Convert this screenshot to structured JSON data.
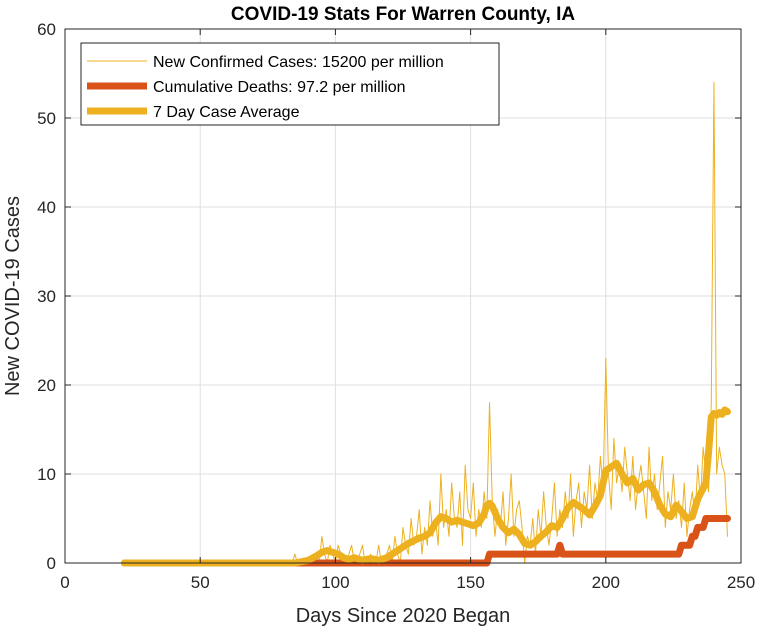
{
  "chart_data": {
    "type": "line",
    "title": "COVID-19 Stats For Warren County, IA",
    "xlabel": "Days Since 2020 Began",
    "ylabel": "New COVID-19 Cases",
    "xlim": [
      0,
      250
    ],
    "ylim": [
      0,
      60
    ],
    "xticks": [
      0,
      50,
      100,
      150,
      200,
      250
    ],
    "yticks": [
      0,
      10,
      20,
      30,
      40,
      50,
      60
    ],
    "xtick_labels": [
      "0",
      "50",
      "100",
      "150",
      "200",
      "250"
    ],
    "ytick_labels": [
      "0",
      "10",
      "20",
      "30",
      "40",
      "50",
      "60"
    ],
    "grid": true,
    "legend_position": "top-left",
    "series": [
      {
        "name": "New Confirmed Cases: 15200 per million",
        "color": "#edb120",
        "style": "thin",
        "x": [
          22,
          30,
          40,
          50,
          60,
          70,
          80,
          84,
          85,
          86,
          90,
          92,
          94,
          95,
          96,
          97,
          98,
          99,
          100,
          101,
          102,
          103,
          104,
          105,
          106,
          107,
          108,
          109,
          110,
          111,
          112,
          113,
          114,
          115,
          116,
          117,
          118,
          119,
          120,
          121,
          122,
          123,
          124,
          125,
          126,
          127,
          128,
          129,
          130,
          131,
          132,
          133,
          134,
          135,
          136,
          137,
          138,
          139,
          140,
          141,
          142,
          143,
          144,
          145,
          146,
          147,
          148,
          149,
          150,
          151,
          152,
          153,
          154,
          155,
          156,
          157,
          158,
          159,
          160,
          161,
          162,
          163,
          164,
          165,
          166,
          167,
          168,
          169,
          170,
          171,
          172,
          173,
          174,
          175,
          176,
          177,
          178,
          179,
          180,
          181,
          182,
          183,
          184,
          185,
          186,
          187,
          188,
          189,
          190,
          191,
          192,
          193,
          194,
          195,
          196,
          197,
          198,
          199,
          200,
          201,
          202,
          203,
          204,
          205,
          206,
          207,
          208,
          209,
          210,
          211,
          212,
          213,
          214,
          215,
          216,
          217,
          218,
          219,
          220,
          221,
          222,
          223,
          224,
          225,
          226,
          227,
          228,
          229,
          230,
          231,
          232,
          233,
          234,
          235,
          236,
          237,
          238,
          239,
          240,
          241,
          242,
          243,
          244,
          245
        ],
        "y": [
          0,
          0,
          0,
          0,
          0,
          0,
          0,
          0,
          1,
          0,
          0,
          1,
          0,
          3,
          1,
          0,
          2,
          1,
          0,
          2,
          1,
          0,
          0,
          1,
          2,
          0,
          0,
          1,
          2,
          0,
          0,
          1,
          0,
          0,
          2,
          0,
          0,
          1,
          2,
          0,
          3,
          1,
          0,
          4,
          2,
          1,
          5,
          2,
          3,
          6,
          1,
          4,
          2,
          7,
          3,
          5,
          2,
          10,
          4,
          6,
          3,
          9,
          5,
          4,
          8,
          2,
          11,
          6,
          5,
          9,
          3,
          6,
          4,
          8,
          5,
          18,
          7,
          3,
          6,
          4,
          8,
          2,
          5,
          10,
          3,
          6,
          7,
          4,
          0,
          3,
          2,
          5,
          1,
          6,
          3,
          8,
          4,
          2,
          5,
          9,
          3,
          6,
          4,
          8,
          5,
          10,
          3,
          7,
          9,
          4,
          8,
          6,
          11,
          5,
          9,
          7,
          12,
          8,
          23,
          10,
          6,
          14,
          9,
          11,
          8,
          13,
          10,
          7,
          12,
          6,
          9,
          11,
          8,
          5,
          13,
          7,
          10,
          6,
          9,
          12,
          4,
          8,
          6,
          10,
          5,
          7,
          4,
          9,
          3,
          6,
          8,
          5,
          11,
          7,
          13,
          10,
          8,
          18,
          54,
          10,
          13,
          11,
          10,
          3
        ]
      },
      {
        "name": "Cumulative Deaths: 97.2 per million",
        "color": "#d95319",
        "style": "thick-step",
        "x": [
          22,
          156,
          157,
          182,
          183,
          184,
          226,
          227,
          228,
          229,
          230,
          231,
          232,
          233,
          234,
          235,
          236,
          237,
          238,
          245
        ],
        "y": [
          0,
          0,
          1,
          1,
          2,
          1,
          1,
          1,
          2,
          2,
          2,
          2,
          3,
          3,
          4,
          4,
          4,
          5,
          5,
          5
        ]
      },
      {
        "name": "7 Day Case Average",
        "color": "#edb120",
        "style": "thick",
        "x": [
          22,
          60,
          85,
          90,
          93,
          95,
          97,
          99,
          101,
          103,
          105,
          107,
          110,
          113,
          116,
          119,
          121,
          123,
          125,
          127,
          129,
          131,
          133,
          135,
          137,
          139,
          141,
          143,
          145,
          147,
          149,
          151,
          153,
          155,
          156,
          157,
          158,
          160,
          162,
          164,
          166,
          168,
          170,
          172,
          174,
          176,
          178,
          180,
          182,
          184,
          186,
          188,
          190,
          192,
          194,
          196,
          198,
          200,
          202,
          204,
          206,
          208,
          210,
          212,
          214,
          216,
          218,
          220,
          222,
          224,
          226,
          228,
          230,
          232,
          234,
          236,
          237,
          238,
          239,
          240,
          241,
          242,
          243,
          244,
          245
        ],
        "y": [
          0,
          0,
          0,
          0.3,
          0.8,
          1.2,
          1.4,
          1.2,
          1.0,
          0.6,
          0.4,
          0.6,
          0.3,
          0.5,
          0.3,
          0.6,
          1.0,
          1.4,
          1.8,
          2.2,
          2.5,
          2.8,
          3.0,
          3.4,
          4.5,
          5.2,
          5.0,
          4.6,
          4.8,
          4.6,
          4.4,
          4.2,
          4.5,
          5.5,
          6.5,
          6.7,
          6.4,
          5.0,
          4.0,
          3.4,
          3.8,
          3.2,
          2.2,
          2.0,
          2.4,
          3.0,
          3.5,
          4.2,
          4.0,
          5.0,
          6.2,
          6.8,
          6.4,
          6.0,
          5.4,
          6.4,
          7.6,
          10.4,
          10.8,
          11.2,
          10.0,
          9.0,
          9.5,
          8.2,
          8.8,
          9.0,
          8.0,
          6.5,
          5.5,
          5.2,
          6.5,
          5.8,
          5.0,
          5.2,
          7.2,
          8.4,
          9.0,
          12.4,
          16.4,
          16.8,
          16.6,
          16.9,
          16.7,
          17.2,
          17.0
        ]
      }
    ]
  }
}
